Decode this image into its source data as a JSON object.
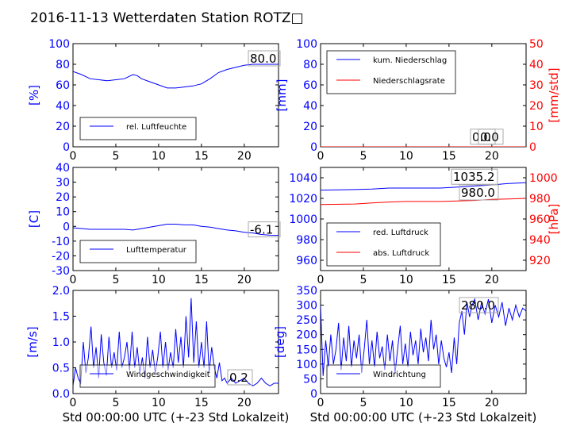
{
  "title": "2016-11-13 Wetterdaten Station ROTZ□",
  "colors": {
    "primary": "#0000ff",
    "secondary": "#ff0000"
  },
  "x_axis": {
    "ticks": [
      0,
      5,
      10,
      15,
      20
    ],
    "range": [
      0,
      24
    ],
    "label": "Std 00:00:00 UTC (+-23 Std Lokalzeit)"
  },
  "chart_data": [
    {
      "id": "humidity",
      "type": "line",
      "ylabel": "[%]",
      "ylim": [
        0,
        100
      ],
      "yticks": [
        0,
        20,
        40,
        60,
        80,
        100
      ],
      "series": [
        {
          "name": "rel. Luftfeuchte",
          "color": "#0000ff",
          "x": [
            0,
            1,
            2,
            3,
            4,
            5,
            6,
            7,
            7.5,
            8,
            9,
            10,
            11,
            12,
            13,
            14,
            15,
            16,
            17,
            18,
            19,
            20,
            21,
            22,
            23,
            24
          ],
          "y": [
            73,
            70,
            66,
            65,
            64,
            65,
            66,
            70,
            69,
            66,
            63,
            60,
            57,
            57,
            58,
            59,
            61,
            66,
            72,
            75,
            77,
            79,
            80,
            80,
            80,
            80
          ]
        }
      ],
      "annotations": [
        "80.0"
      ],
      "legend": "lower-left"
    },
    {
      "id": "precip",
      "type": "line",
      "ylabel": "[mm]",
      "ylim": [
        0,
        100
      ],
      "yticks": [
        0,
        20,
        40,
        60,
        80,
        100
      ],
      "y2label": "[mm/std]",
      "y2lim": [
        0,
        50
      ],
      "y2ticks": [
        0,
        10,
        20,
        30,
        40,
        50
      ],
      "series": [
        {
          "name": "kum. Niederschlag",
          "color": "#0000ff",
          "x": [
            0,
            24
          ],
          "y": [
            0,
            0
          ]
        },
        {
          "name": "Niederschlagsrate",
          "color": "#ff0000",
          "axis": "right",
          "x": [
            0,
            24
          ],
          "y": [
            0,
            0
          ]
        }
      ],
      "annotations": [
        "0.0",
        "0.0"
      ],
      "legend": "upper-left"
    },
    {
      "id": "temperature",
      "type": "line",
      "ylabel": "[C]",
      "ylim": [
        -30,
        40
      ],
      "yticks": [
        -30,
        -20,
        -10,
        0,
        10,
        20,
        30,
        40
      ],
      "series": [
        {
          "name": "Lufttemperatur",
          "color": "#0000ff",
          "x": [
            0,
            2,
            4,
            6,
            7,
            8,
            9,
            10,
            11,
            12,
            13,
            14,
            15,
            16,
            17,
            18,
            19,
            20,
            21,
            22,
            23,
            24
          ],
          "y": [
            -1,
            -2,
            -2,
            -2,
            -2.5,
            -1.5,
            -0.5,
            0.5,
            1.5,
            1.5,
            1,
            1,
            0,
            -0.5,
            -1.5,
            -2.5,
            -3,
            -4,
            -4.5,
            -5.5,
            -6,
            -6.1
          ]
        }
      ],
      "annotations": [
        "-6.1"
      ],
      "legend": "lower-left"
    },
    {
      "id": "pressure",
      "type": "line",
      "ylim": [
        950,
        1050
      ],
      "yticks": [
        960,
        980,
        1000,
        1020,
        1040
      ],
      "y2label": "[hPa]",
      "y2lim": [
        910,
        1010
      ],
      "y2ticks": [
        920,
        940,
        960,
        980,
        1000
      ],
      "series": [
        {
          "name": "red. Luftdruck",
          "color": "#0000ff",
          "x": [
            0,
            4,
            6,
            8,
            10,
            12,
            14,
            16,
            18,
            20,
            22,
            24
          ],
          "y": [
            1028,
            1028.5,
            1029,
            1030,
            1030,
            1030,
            1030,
            1031,
            1032,
            1033,
            1034.5,
            1035.2
          ]
        },
        {
          "name": "abs. Luftdruck",
          "color": "#ff0000",
          "axis": "right",
          "x": [
            0,
            4,
            6,
            8,
            10,
            12,
            14,
            16,
            18,
            20,
            22,
            24
          ],
          "y": [
            974,
            974.5,
            975.5,
            976.5,
            977,
            977,
            977,
            977.5,
            978,
            979,
            979.5,
            980
          ]
        }
      ],
      "annotations": [
        "1035.2",
        "980.0"
      ],
      "legend": "lower-left"
    },
    {
      "id": "windspeed",
      "type": "line",
      "ylabel": "[m/s]",
      "ylim": [
        0,
        2
      ],
      "yticks": [
        0.0,
        0.5,
        1.0,
        1.5,
        2.0
      ],
      "series": [
        {
          "name": "Windgeschwindigkeit",
          "color": "#0000ff",
          "x": [
            0,
            0.3,
            0.6,
            0.9,
            1.2,
            1.5,
            1.8,
            2.1,
            2.4,
            2.7,
            3,
            3.3,
            3.6,
            3.9,
            4.2,
            4.5,
            4.8,
            5.1,
            5.4,
            5.7,
            6,
            6.3,
            6.6,
            6.9,
            7.2,
            7.5,
            7.8,
            8.1,
            8.4,
            8.7,
            9,
            9.3,
            9.6,
            9.9,
            10.2,
            10.5,
            10.8,
            11.1,
            11.4,
            11.7,
            12,
            12.3,
            12.6,
            12.9,
            13.2,
            13.5,
            13.8,
            14.1,
            14.4,
            14.7,
            15,
            15.3,
            15.6,
            15.9,
            16.2,
            16.5,
            16.8,
            17.1,
            17.4,
            17.7,
            18,
            18.5,
            19,
            19.5,
            20,
            20.5,
            21,
            21.5,
            22,
            22.5,
            23,
            23.5,
            24
          ],
          "y": [
            0.15,
            0.5,
            0.3,
            0.2,
            1.0,
            0.4,
            0.7,
            1.3,
            0.5,
            0.9,
            0.3,
            1.15,
            0.6,
            0.35,
            1.1,
            0.5,
            0.8,
            0.45,
            1.2,
            0.5,
            0.7,
            1.0,
            0.45,
            1.2,
            0.5,
            0.9,
            0.4,
            0.7,
            0.3,
            1.1,
            0.5,
            0.85,
            0.4,
            0.7,
            1.2,
            0.5,
            1.0,
            0.45,
            0.8,
            0.5,
            1.25,
            0.6,
            1.1,
            0.5,
            1.5,
            0.7,
            1.85,
            0.6,
            1.4,
            0.5,
            1.0,
            0.5,
            1.4,
            0.4,
            0.9,
            0.5,
            0.3,
            0.6,
            0.25,
            0.3,
            0.2,
            0.3,
            0.2,
            0.25,
            0.3,
            0.2,
            0.15,
            0.2,
            0.3,
            0.2,
            0.15,
            0.2,
            0.2
          ]
        }
      ],
      "annotations": [
        "0.2"
      ],
      "legend": "lower-left"
    },
    {
      "id": "winddir",
      "type": "line",
      "ylabel": "[deg]",
      "ylim": [
        0,
        350
      ],
      "yticks": [
        0,
        50,
        100,
        150,
        200,
        250,
        300,
        350
      ],
      "series": [
        {
          "name": "Windrichtung",
          "color": "#0000ff",
          "x": [
            0,
            0.3,
            0.6,
            0.9,
            1.2,
            1.5,
            1.8,
            2.1,
            2.4,
            2.7,
            3,
            3.3,
            3.6,
            3.9,
            4.2,
            4.5,
            4.8,
            5.1,
            5.4,
            5.7,
            6,
            6.3,
            6.6,
            6.9,
            7.2,
            7.5,
            7.8,
            8.1,
            8.4,
            8.7,
            9,
            9.3,
            9.6,
            9.9,
            10.2,
            10.5,
            10.8,
            11.1,
            11.4,
            11.7,
            12,
            12.3,
            12.6,
            12.9,
            13.2,
            13.5,
            13.8,
            14.1,
            14.4,
            14.7,
            15,
            15.3,
            15.6,
            15.9,
            16.2,
            16.5,
            16.8,
            17.1,
            17.4,
            17.7,
            18,
            18.4,
            18.8,
            19.2,
            19.6,
            20,
            20.4,
            20.8,
            21.2,
            21.6,
            22,
            22.4,
            22.8,
            23.2,
            23.6,
            24
          ],
          "y": [
            300,
            60,
            180,
            90,
            200,
            100,
            150,
            240,
            80,
            190,
            110,
            230,
            90,
            180,
            120,
            200,
            70,
            150,
            250,
            100,
            180,
            90,
            210,
            120,
            160,
            80,
            200,
            110,
            180,
            70,
            150,
            230,
            100,
            170,
            90,
            210,
            130,
            180,
            100,
            220,
            140,
            190,
            110,
            250,
            150,
            200,
            100,
            180,
            120,
            90,
            140,
            70,
            190,
            100,
            240,
            280,
            200,
            310,
            260,
            300,
            320,
            250,
            310,
            270,
            320,
            240,
            300,
            260,
            310,
            230,
            290,
            250,
            300,
            260,
            290,
            280
          ]
        }
      ],
      "annotations": [
        "280.0"
      ],
      "legend": "lower-left"
    }
  ]
}
